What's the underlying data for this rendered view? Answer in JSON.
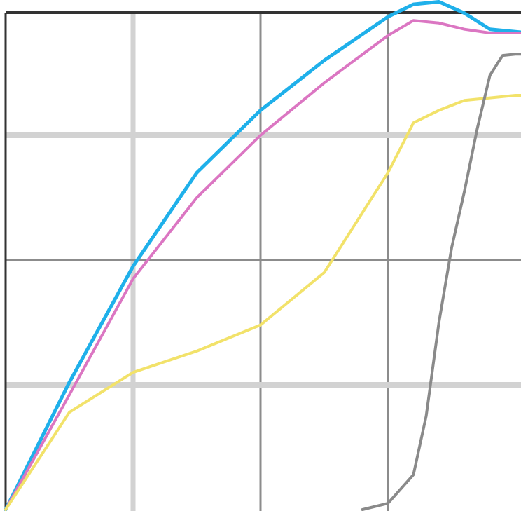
{
  "chart_data": {
    "type": "line",
    "title": "",
    "xlabel": "",
    "ylabel": "",
    "xlim": [
      0,
      4.1
    ],
    "ylim": [
      0,
      4
    ],
    "grid": true,
    "legend": "none",
    "grid_colors": {
      "major": "#8c8c8c",
      "minor": "#d2d2d2",
      "frame": "#333333"
    },
    "series": [
      {
        "color": "#1fb0ea",
        "x": [
          0,
          0.5,
          1,
          1.5,
          2,
          2.5,
          3,
          3.2,
          3.4,
          3.6,
          3.8,
          4.0,
          4.1
        ],
        "y": [
          0,
          1.02,
          1.95,
          2.7,
          3.2,
          3.6,
          3.95,
          4.05,
          4.07,
          3.98,
          3.85,
          3.83,
          3.82
        ]
      },
      {
        "color": "#db76c2",
        "x": [
          0,
          0.5,
          1,
          1.5,
          2,
          2.5,
          3,
          3.2,
          3.4,
          3.6,
          3.8,
          4.0,
          4.1
        ],
        "y": [
          0,
          0.92,
          1.85,
          2.5,
          3.0,
          3.42,
          3.8,
          3.92,
          3.9,
          3.85,
          3.82,
          3.82,
          3.82
        ]
      },
      {
        "color": "#f2e26a",
        "x": [
          0,
          0.5,
          1,
          1.5,
          2,
          2.5,
          3,
          3.2,
          3.4,
          3.6,
          3.8,
          4.0,
          4.1
        ],
        "y": [
          0,
          0.78,
          1.1,
          1.27,
          1.48,
          1.9,
          2.7,
          3.1,
          3.2,
          3.28,
          3.3,
          3.32,
          3.32
        ]
      },
      {
        "color": "#8a8a8a",
        "x": [
          2.8,
          3.0,
          3.2,
          3.3,
          3.4,
          3.5,
          3.6,
          3.7,
          3.8,
          3.9,
          4.0,
          4.1
        ],
        "y": [
          0,
          0.05,
          0.28,
          0.75,
          1.5,
          2.1,
          2.55,
          3.05,
          3.48,
          3.64,
          3.65,
          3.65
        ]
      }
    ]
  }
}
